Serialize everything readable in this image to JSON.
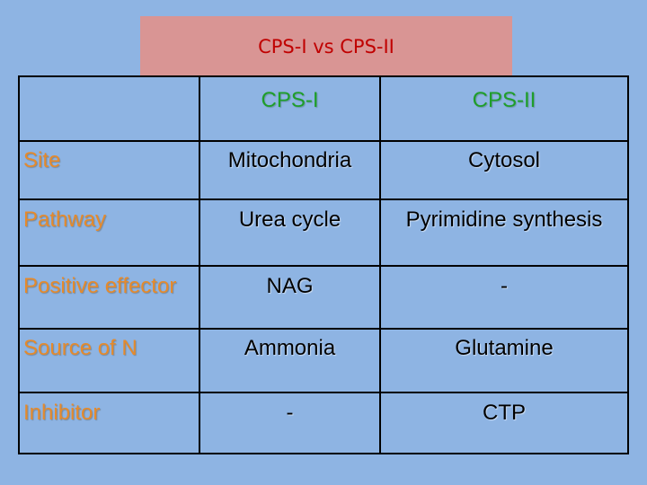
{
  "title": "CPS-I vs CPS-II",
  "columns": [
    "",
    "CPS-I",
    "CPS-II"
  ],
  "rows": [
    {
      "label": "Site",
      "cps1": "Mitochondria",
      "cps2": "Cytosol"
    },
    {
      "label": "Pathway",
      "cps1": "Urea cycle",
      "cps2": "Pyrimidine synthesis"
    },
    {
      "label": "Positive effector",
      "cps1": "NAG",
      "cps2": "-"
    },
    {
      "label": "Source of N",
      "cps1": "Ammonia",
      "cps2": "Glutamine"
    },
    {
      "label": "Inhibitor",
      "cps1": "-",
      "cps2": "CTP"
    }
  ],
  "colors": {
    "background": "#8eb4e3",
    "title_box": "#d99594",
    "title_text": "#c00000",
    "header_text": "#1f9e2a",
    "row_label_text": "#e58a2c"
  }
}
